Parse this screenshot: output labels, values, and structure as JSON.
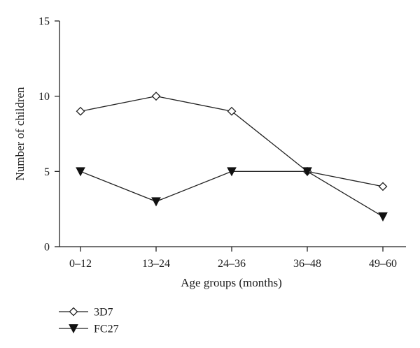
{
  "chart_data": {
    "type": "line",
    "categories": [
      "0–12",
      "13–24",
      "24–36",
      "36–48",
      "49–60"
    ],
    "series": [
      {
        "name": "3D7",
        "values": [
          9,
          10,
          9,
          5,
          4
        ],
        "marker": "open-diamond",
        "color": "#222222"
      },
      {
        "name": "FC27",
        "values": [
          5,
          3,
          5,
          5,
          2
        ],
        "marker": "filled-down-triangle",
        "color": "#222222"
      }
    ],
    "xlabel": "Age groups (months)",
    "ylabel": "Number of children",
    "ylim": [
      0,
      15
    ],
    "yticks": [
      0,
      5,
      10,
      15
    ],
    "grid": false,
    "legend_position": "bottom-left"
  }
}
